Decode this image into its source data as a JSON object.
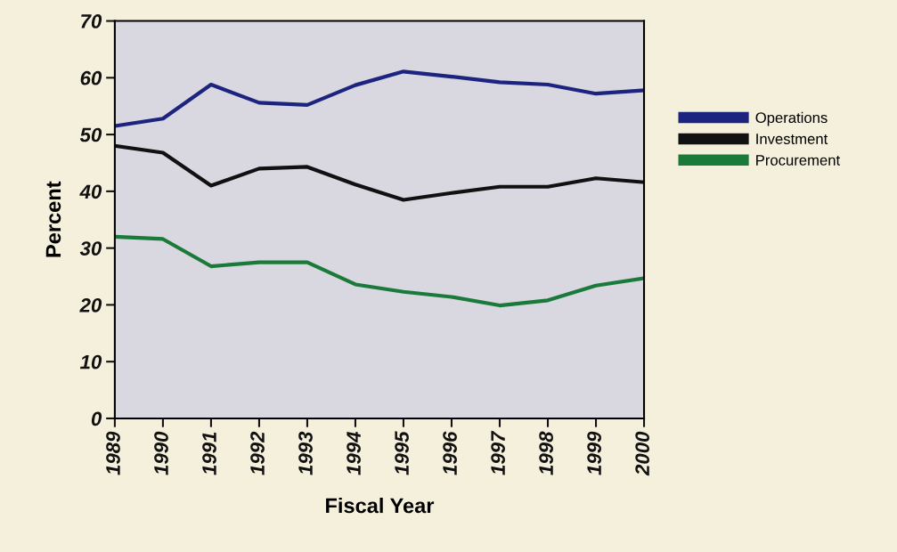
{
  "chart_data": {
    "type": "line",
    "xlabel": "Fiscal Year",
    "ylabel": "Percent",
    "categories": [
      "1989",
      "1990",
      "1991",
      "1992",
      "1993",
      "1994",
      "1995",
      "1996",
      "1997",
      "1998",
      "1999",
      "2000"
    ],
    "series": [
      {
        "name": "Operations",
        "color": "#1c2480",
        "values": [
          51.5,
          52.8,
          58.8,
          55.6,
          55.2,
          58.7,
          61.1,
          60.2,
          59.2,
          58.8,
          57.2,
          57.8
        ]
      },
      {
        "name": "Investment",
        "color": "#111111",
        "values": [
          48,
          46.8,
          41,
          44,
          44.3,
          41.2,
          38.5,
          39.7,
          40.8,
          40.8,
          42.3,
          41.6
        ]
      },
      {
        "name": "Procurement",
        "color": "#1a7a3a",
        "values": [
          32,
          31.6,
          26.8,
          27.5,
          27.5,
          23.6,
          22.3,
          21.4,
          19.9,
          20.8,
          23.4,
          24.7
        ]
      }
    ],
    "ylim": [
      0,
      70
    ],
    "yticks": [
      0,
      10,
      20,
      30,
      40,
      50,
      60,
      70
    ],
    "grid": false,
    "legend": "right",
    "marker": "none",
    "line_style": "solid"
  }
}
